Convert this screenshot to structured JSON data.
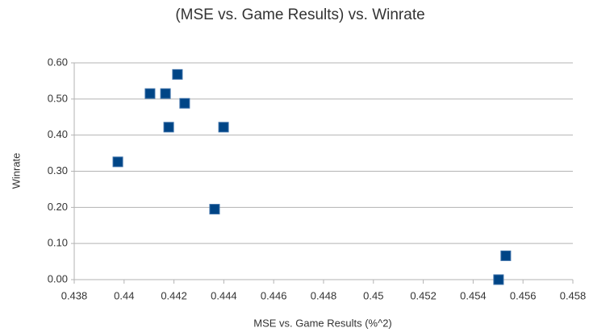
{
  "chart_data": {
    "type": "scatter",
    "title": "(MSE vs. Game Results) vs. Winrate",
    "x_label": "MSE vs. Game Results (%^2)",
    "y_label": "Winrate",
    "series": [
      {
        "name": "Winrate",
        "color": "#004586",
        "x": [
          0.43975,
          0.44104,
          0.44166,
          0.44214,
          0.44179,
          0.44243,
          0.44399,
          0.44363,
          0.45502,
          0.45531
        ],
        "values": [
          0.326,
          0.515,
          0.515,
          0.568,
          0.422,
          0.488,
          0.422,
          0.195,
          0.0,
          0.066
        ]
      }
    ],
    "xlim": [
      0.438,
      0.458
    ],
    "xticks": [
      0.438,
      0.44,
      0.442,
      0.444,
      0.446,
      0.448,
      0.45,
      0.452,
      0.454,
      0.456,
      0.458
    ],
    "ylim": [
      0,
      0.6
    ],
    "yticks": [
      {
        "value": 0,
        "label": "0.00"
      },
      {
        "value": 0.1,
        "label": "0.10"
      },
      {
        "value": 0.2,
        "label": "0.20"
      },
      {
        "value": 0.3,
        "label": "0.30"
      },
      {
        "value": 0.4,
        "label": "0.40"
      },
      {
        "value": 0.5,
        "label": "0.50"
      },
      {
        "value": 0.6,
        "label": "0.60"
      }
    ],
    "grid": true
  }
}
